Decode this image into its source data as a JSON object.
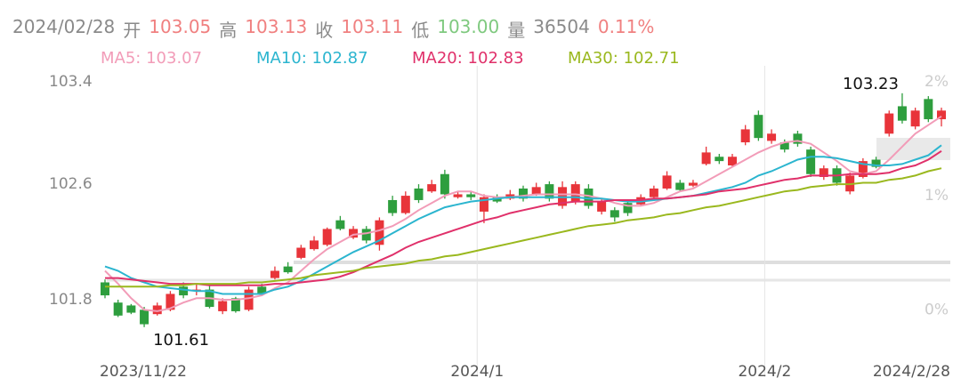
{
  "chart_data": {
    "type": "candlestick",
    "quote": [
      {
        "text": "2024/02/28",
        "color": "#8a8a8a"
      },
      {
        "text": "开",
        "color": "#8a8a8a"
      },
      {
        "text": "103.05",
        "color": "#f08080"
      },
      {
        "text": "高",
        "color": "#8a8a8a"
      },
      {
        "text": "103.13",
        "color": "#f08080"
      },
      {
        "text": "收",
        "color": "#8a8a8a"
      },
      {
        "text": "103.11",
        "color": "#f08080"
      },
      {
        "text": "低",
        "color": "#8a8a8a"
      },
      {
        "text": "103.00",
        "color": "#7fc97f"
      },
      {
        "text": "量",
        "color": "#8a8a8a"
      },
      {
        "text": "36504",
        "color": "#8a8a8a"
      },
      {
        "text": "0.11%",
        "color": "#f08080"
      }
    ],
    "categories": [
      "2023/11/22",
      null,
      null,
      null,
      null,
      null,
      null,
      null,
      null,
      null,
      null,
      null,
      null,
      null,
      null,
      null,
      null,
      null,
      null,
      null,
      null,
      null,
      null,
      null,
      null,
      null,
      null,
      null,
      "2024/1",
      null,
      null,
      null,
      null,
      null,
      null,
      null,
      null,
      null,
      null,
      null,
      null,
      null,
      null,
      null,
      null,
      null,
      null,
      null,
      null,
      null,
      "2024/2",
      null,
      null,
      null,
      null,
      null,
      null,
      null,
      null,
      null,
      null,
      null,
      null,
      null,
      "2024/2/28"
    ],
    "open": [
      101.92,
      101.78,
      101.76,
      101.73,
      101.7,
      101.73,
      101.89,
      101.87,
      101.87,
      101.72,
      101.81,
      101.73,
      101.89,
      101.95,
      102.03,
      102.09,
      102.15,
      102.18,
      102.35,
      102.23,
      102.29,
      102.18,
      102.49,
      102.4,
      102.57,
      102.55,
      102.67,
      102.51,
      102.53,
      102.41,
      102.51,
      102.5,
      102.57,
      102.53,
      102.6,
      102.45,
      102.48,
      102.57,
      102.41,
      102.42,
      102.47,
      102.46,
      102.51,
      102.57,
      102.61,
      102.59,
      102.74,
      102.79,
      102.73,
      102.89,
      103.08,
      102.9,
      102.89,
      102.95,
      102.84,
      102.65,
      102.71,
      102.55,
      102.65,
      102.77,
      102.95,
      103.14,
      103.0,
      103.19,
      103.05
    ],
    "high": [
      101.94,
      101.8,
      101.77,
      101.75,
      101.78,
      101.86,
      101.92,
      101.91,
      101.9,
      101.81,
      101.82,
      101.89,
      101.91,
      102.03,
      102.06,
      102.18,
      102.24,
      102.3,
      102.38,
      102.31,
      102.31,
      102.37,
      102.52,
      102.55,
      102.6,
      102.63,
      102.7,
      102.55,
      102.55,
      102.53,
      102.53,
      102.56,
      102.59,
      102.61,
      102.62,
      102.62,
      102.62,
      102.6,
      102.5,
      102.44,
      102.49,
      102.53,
      102.59,
      102.69,
      102.63,
      102.63,
      102.86,
      102.81,
      102.81,
      103.01,
      103.11,
      102.98,
      102.91,
      102.97,
      102.86,
      102.73,
      102.73,
      102.68,
      102.78,
      102.79,
      103.11,
      103.23,
      103.13,
      103.21,
      103.13
    ],
    "low": [
      101.81,
      101.68,
      101.7,
      101.61,
      101.69,
      101.72,
      101.81,
      101.83,
      101.74,
      101.7,
      101.71,
      101.72,
      101.83,
      101.94,
      101.98,
      102.08,
      102.14,
      102.17,
      102.28,
      102.22,
      102.19,
      102.14,
      102.38,
      102.39,
      102.47,
      102.54,
      102.5,
      102.5,
      102.49,
      102.33,
      102.47,
      102.49,
      102.48,
      102.52,
      102.48,
      102.43,
      102.46,
      102.43,
      102.39,
      102.34,
      102.38,
      102.45,
      102.5,
      102.56,
      102.55,
      102.58,
      102.73,
      102.74,
      102.72,
      102.87,
      102.9,
      102.88,
      102.82,
      102.86,
      102.65,
      102.63,
      102.59,
      102.53,
      102.64,
      102.71,
      102.93,
      103.02,
      102.98,
      103.03,
      103.0
    ],
    "close": [
      101.83,
      101.69,
      101.71,
      101.63,
      101.76,
      101.84,
      101.83,
      101.87,
      101.75,
      101.79,
      101.72,
      101.87,
      101.84,
      102.0,
      101.99,
      102.16,
      102.21,
      102.29,
      102.29,
      102.29,
      102.21,
      102.35,
      102.4,
      102.52,
      102.49,
      102.6,
      102.53,
      102.53,
      102.51,
      102.51,
      102.48,
      102.53,
      102.5,
      102.58,
      102.5,
      102.58,
      102.6,
      102.45,
      102.48,
      102.37,
      102.4,
      102.51,
      102.57,
      102.66,
      102.56,
      102.61,
      102.82,
      102.76,
      102.79,
      102.98,
      102.92,
      102.95,
      102.84,
      102.88,
      102.67,
      102.71,
      102.61,
      102.66,
      102.76,
      102.72,
      103.09,
      103.04,
      103.11,
      103.05,
      103.11
    ],
    "up_color": "#e8343a",
    "down_color": "#2e9e3e",
    "series": [
      {
        "name": "MA5: 103.07",
        "color": "#f29cb8",
        "values": [
          102.0,
          101.91,
          101.81,
          101.73,
          101.72,
          101.74,
          101.78,
          101.81,
          101.81,
          101.8,
          101.8,
          101.81,
          101.83,
          101.88,
          101.92,
          102.0,
          102.08,
          102.15,
          102.2,
          102.25,
          102.26,
          102.28,
          102.31,
          102.36,
          102.42,
          102.47,
          102.52,
          102.55,
          102.55,
          102.52,
          102.51,
          102.51,
          102.52,
          102.53,
          102.53,
          102.53,
          102.53,
          102.52,
          102.5,
          102.47,
          102.45,
          102.45,
          102.47,
          102.51,
          102.55,
          102.57,
          102.62,
          102.67,
          102.72,
          102.77,
          102.82,
          102.86,
          102.89,
          102.9,
          102.88,
          102.82,
          102.76,
          102.69,
          102.67,
          102.69,
          102.77,
          102.86,
          102.95,
          103.01,
          103.07
        ]
      },
      {
        "name": "MA10: 102.87",
        "color": "#2bb5cf",
        "values": [
          102.03,
          102.0,
          101.95,
          101.92,
          101.89,
          101.88,
          101.87,
          101.86,
          101.86,
          101.84,
          101.84,
          101.84,
          101.84,
          101.87,
          101.89,
          101.93,
          101.98,
          102.03,
          102.08,
          102.13,
          102.17,
          102.21,
          102.26,
          102.31,
          102.36,
          102.4,
          102.44,
          102.46,
          102.48,
          102.49,
          102.5,
          102.51,
          102.51,
          102.51,
          102.51,
          102.51,
          102.51,
          102.5,
          102.5,
          102.49,
          102.48,
          102.48,
          102.49,
          102.5,
          102.51,
          102.52,
          102.54,
          102.56,
          102.58,
          102.61,
          102.66,
          102.69,
          102.73,
          102.77,
          102.79,
          102.79,
          102.78,
          102.76,
          102.74,
          102.73,
          102.73,
          102.74,
          102.77,
          102.8,
          102.87
        ]
      },
      {
        "name": "MA20: 102.83",
        "color": "#e0306a",
        "values": [
          101.95,
          101.95,
          101.94,
          101.93,
          101.92,
          101.91,
          101.91,
          101.91,
          101.9,
          101.9,
          101.9,
          101.9,
          101.9,
          101.91,
          101.91,
          101.92,
          101.93,
          101.94,
          101.96,
          101.99,
          102.03,
          102.07,
          102.11,
          102.16,
          102.2,
          102.23,
          102.26,
          102.29,
          102.32,
          102.35,
          102.37,
          102.4,
          102.42,
          102.44,
          102.46,
          102.47,
          102.48,
          102.48,
          102.48,
          102.49,
          102.49,
          102.49,
          102.5,
          102.5,
          102.51,
          102.52,
          102.53,
          102.55,
          102.56,
          102.57,
          102.59,
          102.61,
          102.63,
          102.64,
          102.66,
          102.66,
          102.66,
          102.67,
          102.67,
          102.67,
          102.68,
          102.71,
          102.73,
          102.77,
          102.83
        ]
      },
      {
        "name": "MA30: 102.71",
        "color": "#9ab81e",
        "values": [
          101.89,
          101.89,
          101.89,
          101.89,
          101.89,
          101.9,
          101.9,
          101.91,
          101.91,
          101.91,
          101.91,
          101.92,
          101.92,
          101.93,
          101.94,
          101.95,
          101.97,
          101.98,
          101.99,
          102.0,
          102.02,
          102.03,
          102.04,
          102.05,
          102.07,
          102.08,
          102.1,
          102.11,
          102.13,
          102.15,
          102.17,
          102.19,
          102.21,
          102.23,
          102.25,
          102.27,
          102.29,
          102.31,
          102.32,
          102.33,
          102.35,
          102.36,
          102.37,
          102.39,
          102.4,
          102.42,
          102.44,
          102.45,
          102.47,
          102.49,
          102.51,
          102.53,
          102.55,
          102.56,
          102.58,
          102.59,
          102.6,
          102.6,
          102.61,
          102.61,
          102.63,
          102.64,
          102.66,
          102.69,
          102.71
        ]
      }
    ],
    "max_label": "103.23",
    "min_label": "101.61",
    "ylim": [
      101.35,
      103.42
    ],
    "yticks": [
      103.4,
      102.6,
      101.8
    ],
    "y2lim": [
      -0.48,
      2.14
    ],
    "y2ticks": [
      {
        "value": 2,
        "label": "2%"
      },
      {
        "value": 1,
        "label": "1%"
      },
      {
        "value": 0,
        "label": "0%"
      }
    ],
    "grid": false
  }
}
